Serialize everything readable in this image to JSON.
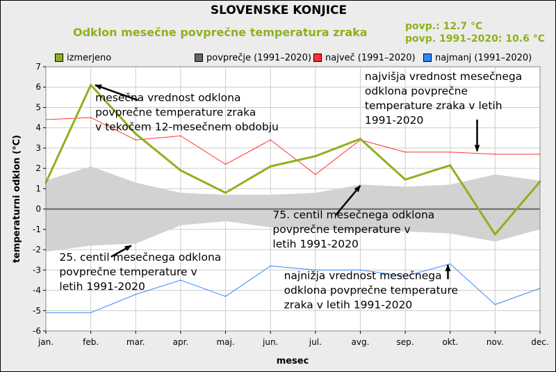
{
  "title": "SLOVENSKE KONJICE",
  "subtitle": "Odklon mesečne povprečne temperatura zraka",
  "stats": [
    "povp.: 12.7 °C",
    "povp. 1991–2020: 10.6 °C"
  ],
  "legend": [
    {
      "label": "izmerjeno",
      "color": "#8db11c"
    },
    {
      "label": "povprečje (1991–2020)",
      "color": "#666666"
    },
    {
      "label": "največ (1991–2020)",
      "color": "#ff3333"
    },
    {
      "label": "najmanj (1991–2020)",
      "color": "#3388ff"
    }
  ],
  "chart_data": {
    "type": "line",
    "xlabel": "mesec",
    "ylabel": "temperaturni odklon (°C)",
    "ylim": [
      -6,
      7
    ],
    "yticks": [
      -6,
      -5,
      -4,
      -3,
      -2,
      -1,
      0,
      1,
      2,
      3,
      4,
      5,
      6,
      7
    ],
    "categories": [
      "jan.",
      "feb.",
      "mar.",
      "apr.",
      "maj.",
      "jun.",
      "jul.",
      "avg.",
      "sep.",
      "okt.",
      "nov.",
      "dec."
    ],
    "grid": true,
    "series": [
      {
        "name": "izmerjeno",
        "color": "#8db11c",
        "values": [
          1.3,
          6.1,
          3.7,
          1.9,
          0.8,
          2.1,
          2.6,
          3.45,
          1.45,
          2.15,
          -1.25,
          1.35
        ]
      },
      {
        "name": "največ (1991–2020)",
        "color": "#ff3333",
        "values": [
          4.4,
          4.5,
          3.4,
          3.6,
          2.2,
          3.4,
          1.7,
          3.4,
          2.8,
          2.8,
          2.7,
          2.7
        ]
      },
      {
        "name": "najmanj (1991–2020)",
        "color": "#3388ff",
        "values": [
          -5.1,
          -5.1,
          -4.2,
          -3.5,
          -4.3,
          -2.8,
          -3.0,
          -3.0,
          -3.3,
          -2.7,
          -4.7,
          -3.9
        ]
      }
    ],
    "band": {
      "name": "povprečje (1991–2020)",
      "color": "#d2d2d2",
      "upper": [
        1.4,
        2.1,
        1.3,
        0.8,
        0.7,
        0.7,
        0.8,
        1.2,
        1.1,
        1.2,
        1.7,
        1.4
      ],
      "lower": [
        -2.1,
        -1.8,
        -1.7,
        -0.8,
        -0.6,
        -0.9,
        -1.0,
        -1.1,
        -1.1,
        -1.2,
        -1.6,
        -1.0
      ],
      "mean": [
        0,
        0,
        0,
        0,
        0,
        0,
        0,
        0,
        0,
        0,
        0,
        0
      ]
    },
    "annotations": [
      {
        "lines": [
          "mesečna vrednost odklona",
          "povprečne temperature zraka",
          "v tekočem 12-mesečnem obdobju"
        ],
        "text_at": [
          1.1,
          5.3
        ],
        "arrow_to": [
          1.1,
          6.1
        ],
        "arrow_from": [
          2.05,
          5.35
        ]
      },
      {
        "lines": [
          "najvišja vrednost mesečnega",
          "odklona povprečne",
          "temperature zraka v letih",
          "1991-2020"
        ],
        "text_at": [
          7.1,
          6.35
        ],
        "arrow_to": [
          9.6,
          2.85
        ],
        "arrow_from": [
          9.6,
          4.4
        ]
      },
      {
        "lines": [
          "75. centil mesečnega odklona",
          "povprečne temperature v",
          "letih 1991-2020"
        ],
        "text_at": [
          5.05,
          -0.45
        ],
        "arrow_to": [
          7.0,
          1.15
        ],
        "arrow_from": [
          6.45,
          -0.3
        ]
      },
      {
        "lines": [
          "25. centil mesečnega odklona",
          "povprečne temperature v",
          "letih 1991-2020"
        ],
        "text_at": [
          0.3,
          -2.55
        ],
        "arrow_to": [
          1.9,
          -1.8
        ],
        "arrow_from": [
          1.45,
          -2.35
        ]
      },
      {
        "lines": [
          "najnižja vrednost mesečnega",
          "odklona povprečne temperature",
          "zraka v letih 1991-2020"
        ],
        "text_at": [
          5.3,
          -3.45
        ],
        "arrow_to": [
          8.95,
          -2.75
        ],
        "arrow_from": [
          8.95,
          -3.45
        ]
      }
    ]
  }
}
